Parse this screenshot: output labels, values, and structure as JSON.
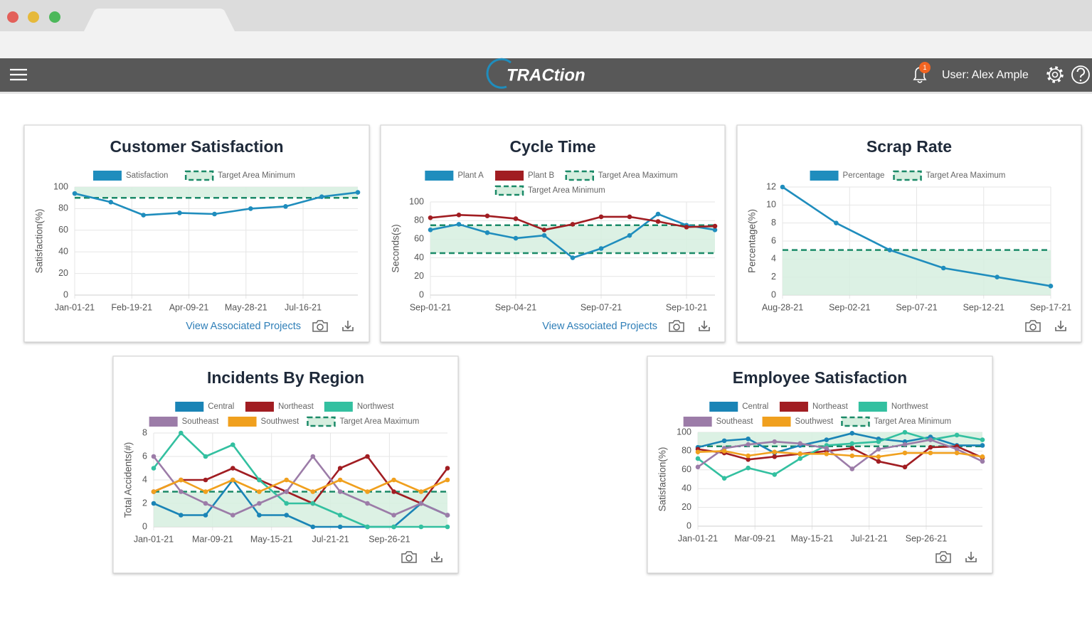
{
  "header": {
    "logo": "TRACtion",
    "notifications": "1",
    "user": "User: Alex Ample"
  },
  "chart_data": [
    {
      "type": "line",
      "title": "Customer Satisfaction",
      "y_label": "Satisfaction(%)",
      "link": "View Associated Projects",
      "x": [
        "2021-01-01",
        "2021-02-01",
        "2021-03-01",
        "2021-04-01",
        "2021-05-01",
        "2021-06-01",
        "2021-07-01",
        "2021-08-01",
        "2021-09-01"
      ],
      "xlim": [
        "2021-01-01",
        "2021-09-01"
      ],
      "xticks": [
        {
          "value": "2021-01-01",
          "label": "Jan-01-21"
        },
        {
          "value": "2021-02-19",
          "label": "Feb-19-21"
        },
        {
          "value": "2021-04-09",
          "label": "Apr-09-21"
        },
        {
          "value": "2021-05-28",
          "label": "May-28-21"
        },
        {
          "value": "2021-07-16",
          "label": "Jul-16-21"
        }
      ],
      "ylim": [
        0,
        100
      ],
      "yticks": [
        0,
        20,
        40,
        60,
        80,
        100
      ],
      "grid": true,
      "series": [
        {
          "name": "Satisfaction",
          "color": "#1f8dbd",
          "values": [
            94,
            86,
            74,
            76,
            75,
            80,
            82,
            91,
            95
          ]
        }
      ],
      "target_color": "#1b8a68",
      "target_fill": "#d6eedf",
      "targets": [
        {
          "name": "Target Area Minimum",
          "kind": "min",
          "value": 90
        }
      ]
    },
    {
      "type": "line",
      "title": "Cycle Time",
      "y_label": "Seconds(s)",
      "link": "View Associated Projects",
      "x": [
        "2021-09-01",
        "2021-09-02",
        "2021-09-03",
        "2021-09-04",
        "2021-09-05",
        "2021-09-06",
        "2021-09-07",
        "2021-09-08",
        "2021-09-09",
        "2021-09-10",
        "2021-09-11"
      ],
      "xlim": [
        "2021-09-01",
        "2021-09-11"
      ],
      "xticks": [
        {
          "value": "2021-09-01",
          "label": "Sep-01-21"
        },
        {
          "value": "2021-09-04",
          "label": "Sep-04-21"
        },
        {
          "value": "2021-09-07",
          "label": "Sep-07-21"
        },
        {
          "value": "2021-09-10",
          "label": "Sep-10-21"
        }
      ],
      "ylim": [
        0,
        100
      ],
      "yticks": [
        0,
        20,
        40,
        60,
        80,
        100
      ],
      "grid": true,
      "series": [
        {
          "name": "Plant A",
          "color": "#1f8dbd",
          "values": [
            70,
            76,
            67,
            61,
            64,
            40,
            50,
            64,
            87,
            75,
            70
          ]
        },
        {
          "name": "Plant B",
          "color": "#a11d22",
          "values": [
            83,
            86,
            85,
            82,
            70,
            76,
            84,
            84,
            79,
            73,
            74
          ]
        }
      ],
      "target_color": "#1b8a68",
      "target_fill": "#d6eedf",
      "targets": [
        {
          "name": "Target Area Maximum",
          "kind": "max",
          "value": 75
        },
        {
          "name": "Target Area Minimum",
          "kind": "min",
          "value": 45
        }
      ]
    },
    {
      "type": "line",
      "title": "Scrap Rate",
      "y_label": "Percentage(%)",
      "x": [
        "2021-08-28",
        "2021-09-01",
        "2021-09-05",
        "2021-09-09",
        "2021-09-13",
        "2021-09-17"
      ],
      "xlim": [
        "2021-08-28",
        "2021-09-17"
      ],
      "xticks": [
        {
          "value": "2021-08-28",
          "label": "Aug-28-21"
        },
        {
          "value": "2021-09-02",
          "label": "Sep-02-21"
        },
        {
          "value": "2021-09-07",
          "label": "Sep-07-21"
        },
        {
          "value": "2021-09-12",
          "label": "Sep-12-21"
        },
        {
          "value": "2021-09-17",
          "label": "Sep-17-21"
        }
      ],
      "ylim": [
        0,
        12
      ],
      "yticks": [
        0,
        2,
        4,
        6,
        8,
        10,
        12
      ],
      "grid": true,
      "series": [
        {
          "name": "Percentage",
          "color": "#1f8dbd",
          "values": [
            12,
            8,
            5,
            3,
            2,
            1
          ]
        }
      ],
      "target_color": "#1b8a68",
      "target_fill": "#d6eedf",
      "targets": [
        {
          "name": "Target Area Maximum",
          "kind": "max",
          "value": 5
        }
      ]
    },
    {
      "type": "line",
      "title": "Incidents By Region",
      "y_label": "Total Accidents(#)",
      "x": [
        "2021-01-01",
        "2021-02-01",
        "2021-03-01",
        "2021-04-01",
        "2021-05-01",
        "2021-06-01",
        "2021-07-01",
        "2021-08-01",
        "2021-09-01",
        "2021-10-01",
        "2021-11-01",
        "2021-12-01"
      ],
      "xlim": [
        "2021-01-01",
        "2021-12-01"
      ],
      "xticks": [
        {
          "value": "2021-01-01",
          "label": "Jan-01-21"
        },
        {
          "value": "2021-03-09",
          "label": "Mar-09-21"
        },
        {
          "value": "2021-05-15",
          "label": "May-15-21"
        },
        {
          "value": "2021-07-21",
          "label": "Jul-21-21"
        },
        {
          "value": "2021-09-26",
          "label": "Sep-26-21"
        }
      ],
      "ylim": [
        0,
        8
      ],
      "yticks": [
        0,
        2,
        4,
        6,
        8
      ],
      "grid": true,
      "series": [
        {
          "name": "Central",
          "color": "#1a84b6",
          "values": [
            2,
            1,
            1,
            4,
            1,
            1,
            0,
            0,
            0,
            0,
            2,
            1
          ]
        },
        {
          "name": "Northeast",
          "color": "#a11d22",
          "values": [
            3,
            4,
            4,
            5,
            4,
            3,
            2,
            5,
            6,
            3,
            2,
            5
          ]
        },
        {
          "name": "Northwest",
          "color": "#33c0a0",
          "values": [
            5,
            8,
            6,
            7,
            4,
            2,
            2,
            1,
            0,
            0,
            0,
            0
          ]
        },
        {
          "name": "Southeast",
          "color": "#9c7ca8",
          "values": [
            6,
            3,
            2,
            1,
            2,
            3,
            6,
            3,
            2,
            1,
            2,
            1
          ]
        },
        {
          "name": "Southwest",
          "color": "#f0a01e",
          "values": [
            3,
            4,
            3,
            4,
            3,
            4,
            3,
            4,
            3,
            4,
            3,
            4
          ]
        }
      ],
      "target_color": "#1b8a68",
      "target_fill": "#d6eedf",
      "targets": [
        {
          "name": "Target Area Maximum",
          "kind": "max",
          "value": 3
        }
      ]
    },
    {
      "type": "line",
      "title": "Employee Satisfaction",
      "y_label": "Satisfaction(%)",
      "x": [
        "2021-01-01",
        "2021-02-01",
        "2021-03-01",
        "2021-04-01",
        "2021-05-01",
        "2021-06-01",
        "2021-07-01",
        "2021-08-01",
        "2021-09-01",
        "2021-10-01",
        "2021-11-01",
        "2021-12-01"
      ],
      "xlim": [
        "2021-01-01",
        "2021-12-01"
      ],
      "xticks": [
        {
          "value": "2021-01-01",
          "label": "Jan-01-21"
        },
        {
          "value": "2021-03-09",
          "label": "Mar-09-21"
        },
        {
          "value": "2021-05-15",
          "label": "May-15-21"
        },
        {
          "value": "2021-07-21",
          "label": "Jul-21-21"
        },
        {
          "value": "2021-09-26",
          "label": "Sep-26-21"
        }
      ],
      "ylim": [
        0,
        100
      ],
      "yticks": [
        0,
        20,
        40,
        60,
        80,
        100
      ],
      "grid": true,
      "series": [
        {
          "name": "Central",
          "color": "#1a84b6",
          "values": [
            84,
            91,
            93,
            78,
            86,
            92,
            99,
            93,
            90,
            95,
            86,
            86
          ]
        },
        {
          "name": "Northeast",
          "color": "#a11d22",
          "values": [
            82,
            78,
            71,
            74,
            77,
            80,
            83,
            69,
            63,
            84,
            85,
            73
          ]
        },
        {
          "name": "Northwest",
          "color": "#33c0a0",
          "values": [
            72,
            51,
            62,
            55,
            72,
            86,
            88,
            90,
            100,
            92,
            97,
            92
          ]
        },
        {
          "name": "Southeast",
          "color": "#9c7ca8",
          "values": [
            63,
            83,
            87,
            90,
            88,
            83,
            61,
            82,
            87,
            92,
            82,
            69
          ]
        },
        {
          "name": "Southwest",
          "color": "#f0a01e",
          "values": [
            79,
            80,
            75,
            79,
            77,
            77,
            75,
            74,
            78,
            78,
            78,
            74
          ]
        }
      ],
      "target_color": "#1b8a68",
      "target_fill": "#d6eedf",
      "targets": [
        {
          "name": "Target Area Minimum",
          "kind": "min",
          "value": 85
        }
      ]
    }
  ]
}
